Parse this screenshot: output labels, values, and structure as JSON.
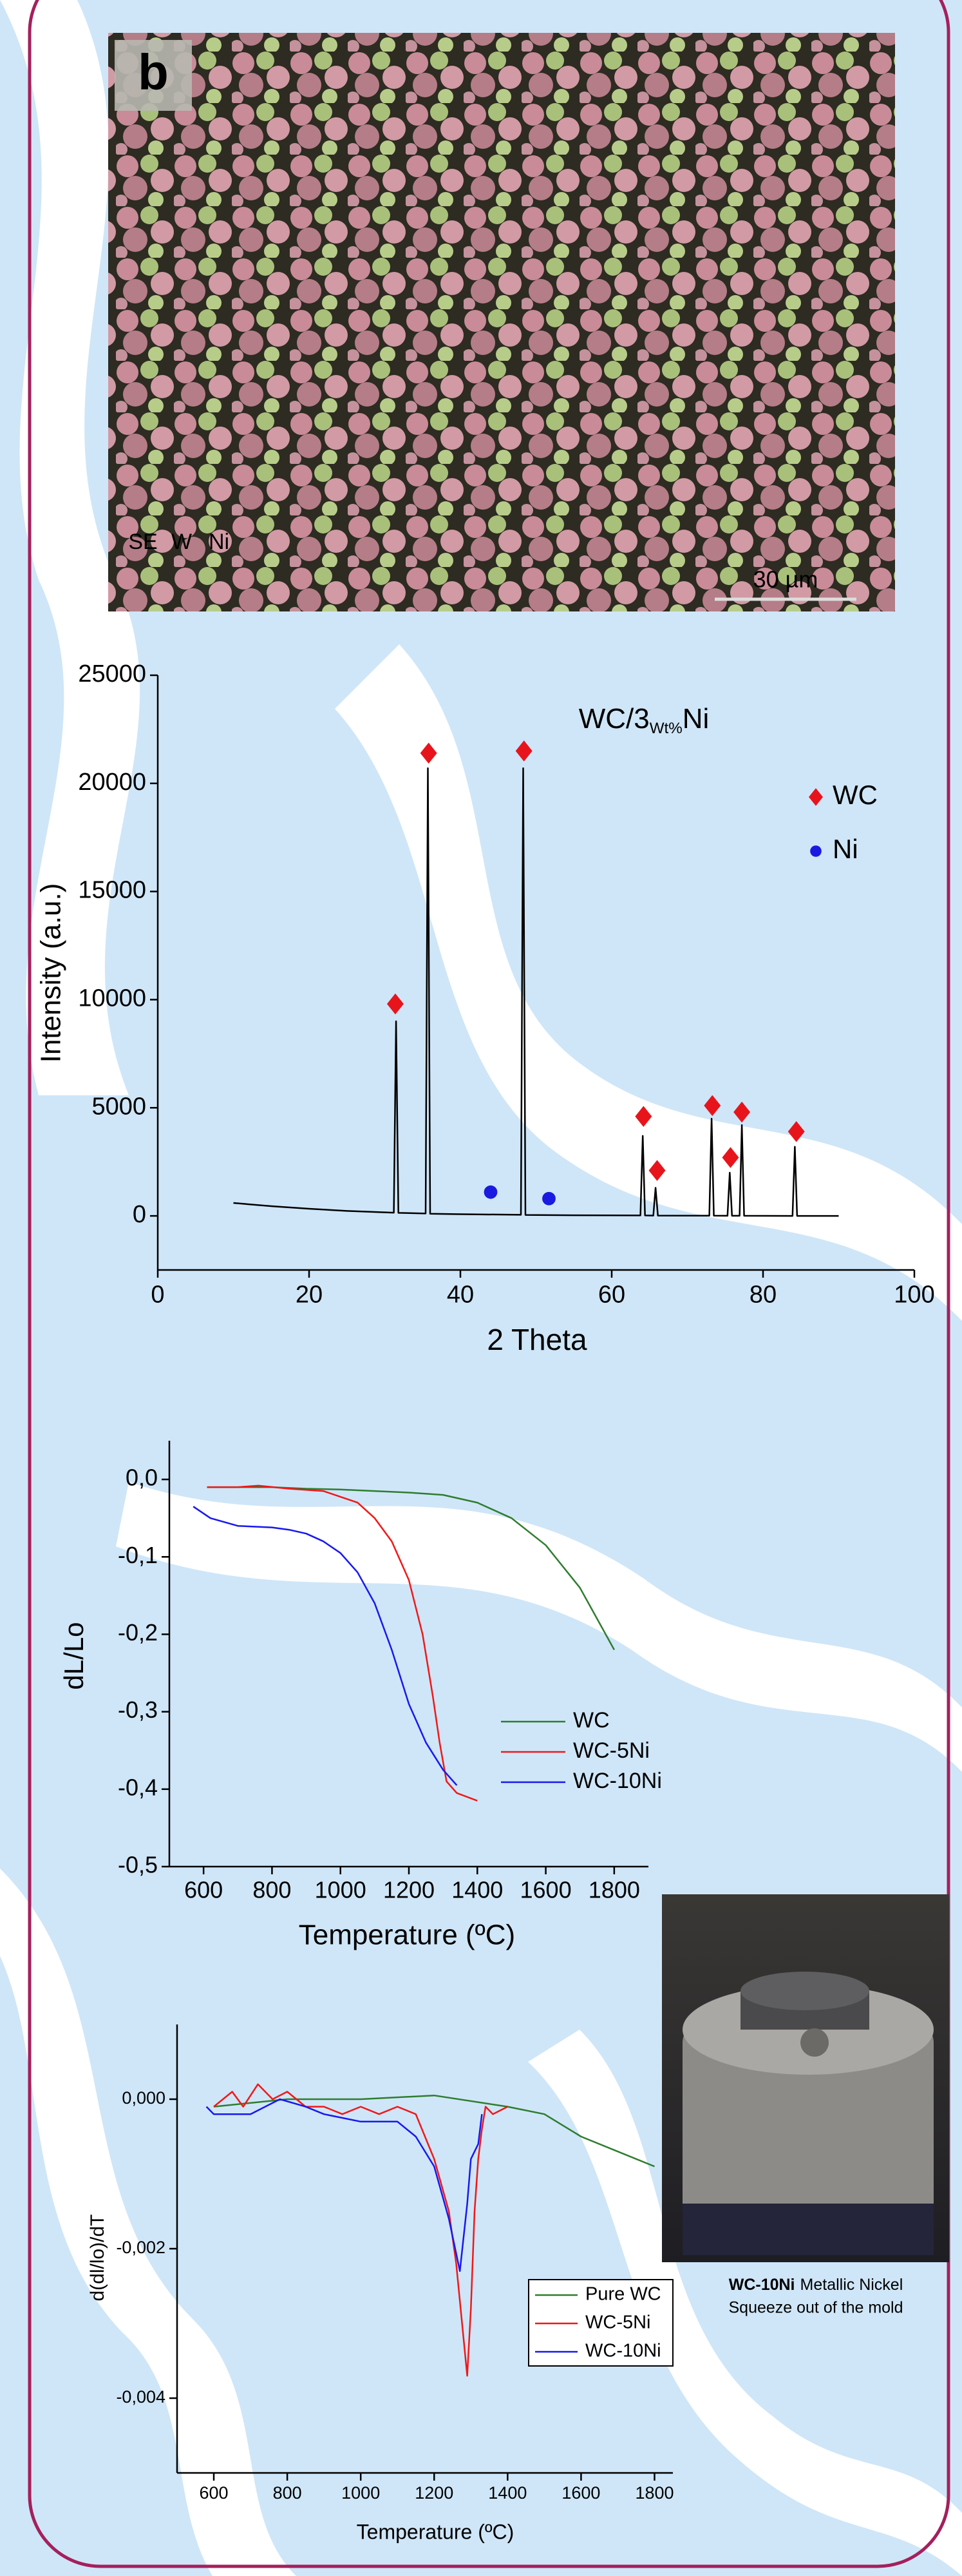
{
  "sem_labels": {
    "panel": "b",
    "channels": [
      "SE",
      "W",
      "Ni"
    ],
    "scale_bar": "30 µm"
  },
  "caption": {
    "label": "WC-10Ni",
    "lines": [
      "Metallic Nickel",
      "Squeeze out of the mold"
    ]
  },
  "chart_data": [
    {
      "type": "line",
      "title": [
        "WC/3",
        "Wt%",
        "Ni"
      ],
      "x_label": "2 Theta",
      "y_label": "Intensity (a.u.)",
      "xlim": [
        0,
        100
      ],
      "xticks": [
        0,
        20,
        40,
        60,
        80,
        100
      ],
      "ylim": [
        -2500,
        25000
      ],
      "yticks": [
        0,
        5000,
        10000,
        15000,
        20000,
        25000
      ],
      "grid": false,
      "legend": "upper right",
      "legend_frame": false,
      "series": [
        {
          "color": "#000000",
          "x": [
            10,
            15,
            20,
            25,
            31.2,
            31.5,
            31.8,
            35.4,
            35.7,
            36,
            39.5,
            48,
            48.3,
            48.6,
            55,
            63.8,
            64.1,
            64.4,
            65.5,
            65.8,
            66.1,
            72.9,
            73.2,
            73.5,
            75.3,
            75.6,
            75.9,
            76.9,
            77.2,
            77.5,
            83.9,
            84.2,
            84.5,
            90
          ],
          "values": [
            600,
            450,
            330,
            230,
            150,
            9000,
            140,
            110,
            20700,
            100,
            80,
            50,
            20700,
            45,
            30,
            20,
            3700,
            20,
            15,
            1300,
            15,
            10,
            4500,
            10,
            5,
            2000,
            5,
            5,
            4200,
            5,
            0,
            3200,
            0,
            0
          ]
        },
        {
          "name": "WC",
          "color": "#e8141c",
          "marker": "diamond",
          "x": [
            31.4,
            35.8,
            48.4,
            64.2,
            66,
            73.3,
            75.7,
            77.2,
            84.4
          ],
          "values": [
            9800,
            21400,
            21500,
            4600,
            2100,
            5100,
            2700,
            4800,
            3900
          ]
        },
        {
          "name": "Ni",
          "color": "#1a1ae0",
          "marker": "circle",
          "x": [
            44,
            51.7
          ],
          "values": [
            1100,
            800
          ]
        }
      ]
    },
    {
      "type": "line",
      "x_label": "Temperature (ºC)",
      "y_label": "dL/Lo",
      "xlim": [
        500,
        1900
      ],
      "xticks": [
        600,
        800,
        1000,
        1200,
        1400,
        1600,
        1800
      ],
      "ylim": [
        -0.5,
        0.05
      ],
      "yticks": [
        {
          "value": 0,
          "label": "0,0"
        },
        {
          "value": -0.1,
          "label": "-0,1"
        },
        {
          "value": -0.2,
          "label": "-0,2"
        },
        {
          "value": -0.3,
          "label": "-0,3"
        },
        {
          "value": -0.4,
          "label": "-0,4"
        },
        {
          "value": -0.5,
          "label": "-0,5"
        }
      ],
      "grid": false,
      "legend": "lower right",
      "legend_frame": false,
      "series": [
        {
          "name": "WC",
          "color": "#2e7d2e",
          "x": [
            610,
            700,
            800,
            900,
            1000,
            1100,
            1200,
            1300,
            1400,
            1500,
            1600,
            1700,
            1750,
            1800
          ],
          "values": [
            -0.01,
            -0.01,
            -0.01,
            -0.012,
            -0.013,
            -0.015,
            -0.017,
            -0.02,
            -0.03,
            -0.05,
            -0.085,
            -0.14,
            -0.18,
            -0.22
          ]
        },
        {
          "name": "WC-5Ni",
          "color": "#f01818",
          "x": [
            610,
            700,
            760,
            850,
            950,
            1050,
            1100,
            1150,
            1200,
            1240,
            1270,
            1290,
            1310,
            1340,
            1400
          ],
          "values": [
            -0.01,
            -0.01,
            -0.008,
            -0.012,
            -0.015,
            -0.03,
            -0.05,
            -0.08,
            -0.13,
            -0.2,
            -0.28,
            -0.34,
            -0.39,
            -0.405,
            -0.415
          ]
        },
        {
          "name": "WC-10Ni",
          "color": "#1818f0",
          "x": [
            570,
            620,
            700,
            800,
            850,
            900,
            950,
            1000,
            1050,
            1100,
            1150,
            1200,
            1250,
            1300,
            1340
          ],
          "values": [
            -0.035,
            -0.05,
            -0.06,
            -0.062,
            -0.065,
            -0.07,
            -0.08,
            -0.095,
            -0.12,
            -0.16,
            -0.22,
            -0.29,
            -0.34,
            -0.375,
            -0.395
          ]
        }
      ]
    },
    {
      "type": "line",
      "x_label": "Temperature (ºC)",
      "y_label": "d(dl/lo)/dT",
      "xlim": [
        500,
        1850
      ],
      "xticks": [
        600,
        800,
        1000,
        1200,
        1400,
        1600,
        1800
      ],
      "ylim": [
        -0.005,
        0.001
      ],
      "yticks": [
        {
          "value": 0,
          "label": "0,000"
        },
        {
          "value": -0.002,
          "label": "-0,002"
        },
        {
          "value": -0.004,
          "label": "-0,004"
        }
      ],
      "grid": false,
      "legend": "lower right",
      "legend_frame": true,
      "series": [
        {
          "name": "Pure WC",
          "color": "#2e7d2e",
          "x": [
            600,
            800,
            1000,
            1200,
            1400,
            1500,
            1600,
            1700,
            1800
          ],
          "values": [
            -0.0001,
            0,
            0,
            5e-05,
            -0.0001,
            -0.0002,
            -0.0005,
            -0.0007,
            -0.0009
          ]
        },
        {
          "name": "WC-5Ni",
          "color": "#f01818",
          "x": [
            600,
            650,
            680,
            720,
            760,
            800,
            850,
            900,
            950,
            1000,
            1050,
            1100,
            1150,
            1200,
            1240,
            1260,
            1280,
            1290,
            1300,
            1310,
            1320,
            1330,
            1340,
            1360,
            1400
          ],
          "values": [
            -0.0001,
            0.0001,
            -0.0001,
            0.0002,
            0,
            0.0001,
            -0.0001,
            -0.0001,
            -0.0002,
            -0.0001,
            -0.0002,
            -0.0001,
            -0.0002,
            -0.0008,
            -0.0015,
            -0.0022,
            -0.0032,
            -0.0037,
            -0.0028,
            -0.0015,
            -0.0008,
            -0.0004,
            -0.0001,
            -0.0002,
            -0.0001
          ]
        },
        {
          "name": "WC-10Ni",
          "color": "#1818f0",
          "x": [
            580,
            600,
            700,
            780,
            850,
            900,
            1000,
            1100,
            1150,
            1200,
            1240,
            1270,
            1290,
            1300,
            1320,
            1330
          ],
          "values": [
            -0.0001,
            -0.0002,
            -0.0002,
            0,
            -0.0001,
            -0.0002,
            -0.0003,
            -0.0003,
            -0.0005,
            -0.0009,
            -0.0016,
            -0.0023,
            -0.0014,
            -0.0008,
            -0.0006,
            -0.0002
          ]
        }
      ]
    }
  ]
}
